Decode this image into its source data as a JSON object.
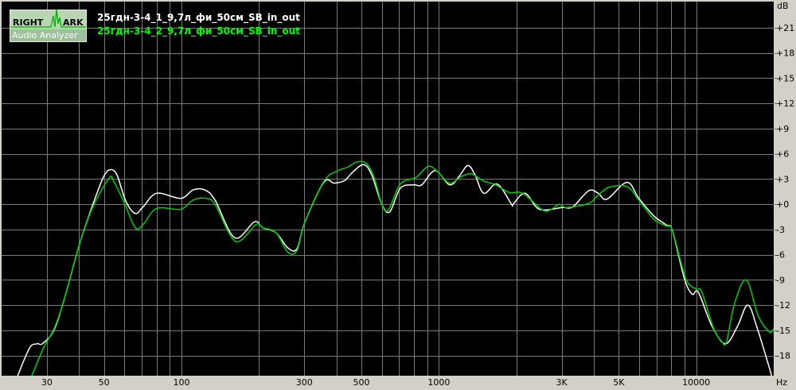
{
  "logo": {
    "text_top_left": "RIGHT",
    "text_top_right": "ARK",
    "text_bottom": "Audio Analyzer"
  },
  "chart_data": {
    "type": "line",
    "xlabel": "Hz",
    "ylabel": "dB",
    "xscale": "log",
    "xlim": [
      20,
      20000
    ],
    "ylim": [
      -20.4,
      24.1
    ],
    "grid": true,
    "legend_placement": "top-left",
    "background": "#000000",
    "x_tick_labels": [
      {
        "value": 30,
        "label": "30"
      },
      {
        "value": 50,
        "label": "50"
      },
      {
        "value": 100,
        "label": "100"
      },
      {
        "value": 300,
        "label": "300"
      },
      {
        "value": 500,
        "label": "500"
      },
      {
        "value": 1000,
        "label": "1000"
      },
      {
        "value": 3000,
        "label": "3K"
      },
      {
        "value": 5000,
        "label": "5K"
      },
      {
        "value": 10000,
        "label": "10000"
      }
    ],
    "y_tick_labels": [
      {
        "value": 21,
        "label": "+21"
      },
      {
        "value": 18,
        "label": "+18"
      },
      {
        "value": 15,
        "label": "+15"
      },
      {
        "value": 12,
        "label": "+12"
      },
      {
        "value": 9,
        "label": "+9"
      },
      {
        "value": 6,
        "label": "+6"
      },
      {
        "value": 3,
        "label": "+3"
      },
      {
        "value": 0,
        "label": "+0"
      },
      {
        "value": -3,
        "label": "-3"
      },
      {
        "value": -6,
        "label": "-6"
      },
      {
        "value": -9,
        "label": "-9"
      },
      {
        "value": -12,
        "label": "-12"
      },
      {
        "value": -15,
        "label": "-15"
      },
      {
        "value": -18,
        "label": "-18"
      }
    ],
    "series": [
      {
        "name": "25гдн-3-4_1_9,7л_фи_50см_SB_in_out",
        "color": "#ffffff",
        "points": [
          [
            23.1,
            -20.4
          ],
          [
            25.7,
            -17.1
          ],
          [
            27.5,
            -16.6
          ],
          [
            28.8,
            -16.6
          ],
          [
            31.8,
            -15.1
          ],
          [
            34.8,
            -11.6
          ],
          [
            40.2,
            -4.7
          ],
          [
            45.3,
            0
          ],
          [
            49.7,
            3.2
          ],
          [
            52.7,
            4.1
          ],
          [
            56.1,
            3.5
          ],
          [
            60.7,
            0.4
          ],
          [
            66.1,
            -1.1
          ],
          [
            71.0,
            -0.3
          ],
          [
            80.1,
            1.3
          ],
          [
            99.2,
            0.7
          ],
          [
            111,
            1.7
          ],
          [
            123,
            1.7
          ],
          [
            135,
            0.5
          ],
          [
            161,
            -4.0
          ],
          [
            192,
            -2.1
          ],
          [
            207,
            -2.8
          ],
          [
            233,
            -3.4
          ],
          [
            259,
            -5.2
          ],
          [
            281,
            -5.3
          ],
          [
            301,
            -2.2
          ],
          [
            357,
            2.6
          ],
          [
            392,
            2.5
          ],
          [
            430,
            2.8
          ],
          [
            462,
            3.8
          ],
          [
            510,
            4.7
          ],
          [
            548,
            3.5
          ],
          [
            600,
            0
          ],
          [
            645,
            -0.9
          ],
          [
            708,
            1.9
          ],
          [
            798,
            2.3
          ],
          [
            858,
            2.3
          ],
          [
            968,
            4.0
          ],
          [
            1100,
            2.3
          ],
          [
            1198,
            3.3
          ],
          [
            1296,
            4.6
          ],
          [
            1382,
            3.5
          ],
          [
            1494,
            1.3
          ],
          [
            1686,
            2.4
          ],
          [
            1916,
            0
          ],
          [
            1943,
            0
          ],
          [
            2163,
            1.3
          ],
          [
            2458,
            -0.6
          ],
          [
            3020,
            -0.4
          ],
          [
            3316,
            -0.3
          ],
          [
            3820,
            1.6
          ],
          [
            4160,
            1.3
          ],
          [
            4500,
            0.6
          ],
          [
            5380,
            2.6
          ],
          [
            5985,
            0.7
          ],
          [
            6850,
            -1.4
          ],
          [
            7676,
            -2.5
          ],
          [
            8070,
            -3.1
          ],
          [
            8980,
            -8.8
          ],
          [
            9640,
            -10.7
          ],
          [
            10200,
            -10.5
          ],
          [
            11510,
            -14.5
          ],
          [
            13000,
            -16.6
          ],
          [
            14470,
            -14.5
          ],
          [
            15860,
            -12.0
          ],
          [
            17280,
            -14.8
          ],
          [
            19640,
            -20.4
          ]
        ]
      },
      {
        "name": "25гдн-3-4_2_9,7л_фи_50см_SB_in_out",
        "color": "#00d000",
        "points": [
          [
            26.2,
            -20.4
          ],
          [
            29.2,
            -17.0
          ],
          [
            32.0,
            -14.8
          ],
          [
            34.8,
            -11.6
          ],
          [
            40.2,
            -4.7
          ],
          [
            45.3,
            -0.3
          ],
          [
            52.3,
            3.1
          ],
          [
            54.6,
            2.7
          ],
          [
            60.3,
            0
          ],
          [
            66.1,
            -2.8
          ],
          [
            71.0,
            -2.4
          ],
          [
            80.1,
            -0.5
          ],
          [
            99.2,
            -0.6
          ],
          [
            111,
            0.5
          ],
          [
            124,
            0.7
          ],
          [
            135,
            0
          ],
          [
            162,
            -4.4
          ],
          [
            195,
            -2.4
          ],
          [
            207,
            -2.8
          ],
          [
            233,
            -3.4
          ],
          [
            259,
            -5.7
          ],
          [
            281,
            -5.5
          ],
          [
            301,
            -2.2
          ],
          [
            357,
            2.7
          ],
          [
            406,
            4.0
          ],
          [
            442,
            4.4
          ],
          [
            478,
            5.0
          ],
          [
            521,
            4.9
          ],
          [
            560,
            3.2
          ],
          [
            600,
            0
          ],
          [
            636,
            -0.7
          ],
          [
            708,
            2.4
          ],
          [
            816,
            3.2
          ],
          [
            908,
            4.5
          ],
          [
            988,
            3.9
          ],
          [
            1100,
            2.5
          ],
          [
            1224,
            3.3
          ],
          [
            1342,
            3.6
          ],
          [
            1484,
            2.8
          ],
          [
            1662,
            2.3
          ],
          [
            1876,
            1.4
          ],
          [
            2118,
            1.3
          ],
          [
            2530,
            -0.7
          ],
          [
            2736,
            -0.6
          ],
          [
            2938,
            0
          ],
          [
            3132,
            -0.4
          ],
          [
            3820,
            0.1
          ],
          [
            4100,
            0.9
          ],
          [
            4570,
            2.0
          ],
          [
            5380,
            2.1
          ],
          [
            5985,
            0.5
          ],
          [
            6850,
            -1.8
          ],
          [
            7676,
            -2.6
          ],
          [
            8070,
            -3.1
          ],
          [
            9100,
            -8.8
          ],
          [
            10000,
            -10.1
          ],
          [
            10500,
            -10.4
          ],
          [
            11690,
            -14.8
          ],
          [
            12560,
            -16.3
          ],
          [
            13100,
            -16.4
          ],
          [
            14060,
            -11.9
          ],
          [
            15640,
            -9.0
          ],
          [
            17420,
            -13.3
          ],
          [
            19300,
            -15.2
          ],
          [
            20000,
            -14.8
          ]
        ]
      }
    ]
  }
}
